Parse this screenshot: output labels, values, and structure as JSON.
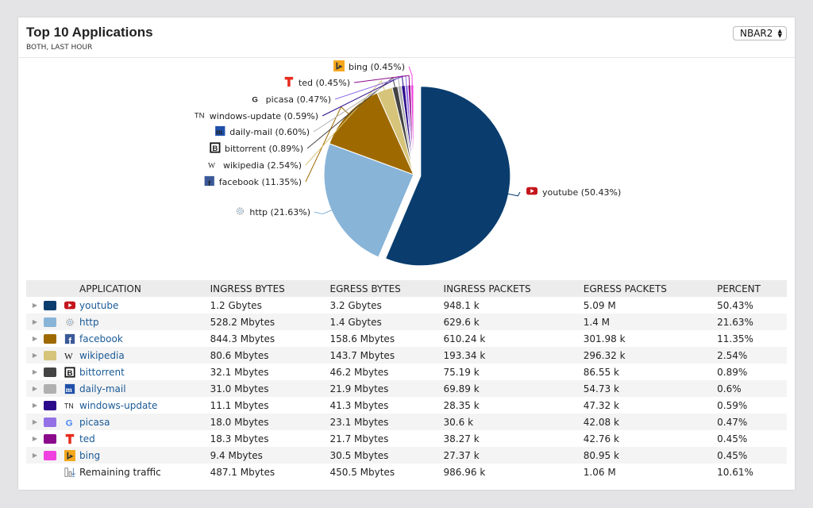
{
  "header": {
    "title": "Top 10 Applications",
    "subtitle": "BOTH, LAST HOUR",
    "select_value": "NBAR2"
  },
  "colors": {
    "accent_link": "#1a5a96"
  },
  "table": {
    "columns": [
      "APPLICATION",
      "INGRESS BYTES",
      "EGRESS BYTES",
      "INGRESS PACKETS",
      "EGRESS PACKETS",
      "PERCENT"
    ],
    "rows": [
      {
        "app": "youtube",
        "icon": "youtube-icon",
        "color": "#0a3d6e",
        "ingress_bytes": "1.2 Gbytes",
        "egress_bytes": "3.2 Gbytes",
        "ingress_packets": "948.1 k",
        "egress_packets": "5.09 M",
        "percent": "50.43%"
      },
      {
        "app": "http",
        "icon": "gear-icon",
        "color": "#88b4d8",
        "ingress_bytes": "528.2 Mbytes",
        "egress_bytes": "1.4 Gbytes",
        "ingress_packets": "629.6 k",
        "egress_packets": "1.4 M",
        "percent": "21.63%"
      },
      {
        "app": "facebook",
        "icon": "facebook-icon",
        "color": "#9e6a00",
        "ingress_bytes": "844.3 Mbytes",
        "egress_bytes": "158.6 Mbytes",
        "ingress_packets": "610.24 k",
        "egress_packets": "301.98 k",
        "percent": "11.35%"
      },
      {
        "app": "wikipedia",
        "icon": "wikipedia-icon",
        "color": "#d6c47a",
        "ingress_bytes": "80.6 Mbytes",
        "egress_bytes": "143.7 Mbytes",
        "ingress_packets": "193.34 k",
        "egress_packets": "296.32 k",
        "percent": "2.54%"
      },
      {
        "app": "bittorrent",
        "icon": "bittorrent-icon",
        "color": "#444444",
        "ingress_bytes": "32.1 Mbytes",
        "egress_bytes": "46.2 Mbytes",
        "ingress_packets": "75.19 k",
        "egress_packets": "86.55 k",
        "percent": "0.89%"
      },
      {
        "app": "daily-mail",
        "icon": "daily-mail-icon",
        "color": "#b0b0b0",
        "ingress_bytes": "31.0 Mbytes",
        "egress_bytes": "21.9 Mbytes",
        "ingress_packets": "69.89 k",
        "egress_packets": "54.73 k",
        "percent": "0.6%"
      },
      {
        "app": "windows-update",
        "icon": "windows-update-icon",
        "color": "#2a0a8a",
        "ingress_bytes": "11.1 Mbytes",
        "egress_bytes": "41.3 Mbytes",
        "ingress_packets": "28.35 k",
        "egress_packets": "47.32 k",
        "percent": "0.59%"
      },
      {
        "app": "picasa",
        "icon": "google-icon",
        "color": "#9370e6",
        "ingress_bytes": "18.0 Mbytes",
        "egress_bytes": "23.1 Mbytes",
        "ingress_packets": "30.6 k",
        "egress_packets": "42.08 k",
        "percent": "0.47%"
      },
      {
        "app": "ted",
        "icon": "ted-icon",
        "color": "#8b0a8b",
        "ingress_bytes": "18.3 Mbytes",
        "egress_bytes": "21.7 Mbytes",
        "ingress_packets": "38.27 k",
        "egress_packets": "42.76 k",
        "percent": "0.45%"
      },
      {
        "app": "bing",
        "icon": "bing-icon",
        "color": "#f040e0",
        "ingress_bytes": "9.4 Mbytes",
        "egress_bytes": "30.5 Mbytes",
        "ingress_packets": "27.37 k",
        "egress_packets": "80.95 k",
        "percent": "0.45%"
      }
    ],
    "remaining": {
      "app": "Remaining traffic",
      "icon": "remaining-traffic-icon",
      "ingress_bytes": "487.1 Mbytes",
      "egress_bytes": "450.5 Mbytes",
      "ingress_packets": "986.96 k",
      "egress_packets": "1.06 M",
      "percent": "10.61%"
    }
  },
  "chart_data": {
    "type": "pie",
    "slices": [
      {
        "label": "youtube (50.43%)",
        "value": 50.43,
        "color": "#0a3d6e",
        "exploded": true
      },
      {
        "label": "http (21.63%)",
        "value": 21.63,
        "color": "#88b4d8"
      },
      {
        "label": "facebook (11.35%)",
        "value": 11.35,
        "color": "#9e6a00"
      },
      {
        "label": "wikipedia (2.54%)",
        "value": 2.54,
        "color": "#d6c47a"
      },
      {
        "label": "bittorrent (0.89%)",
        "value": 0.89,
        "color": "#444444"
      },
      {
        "label": "daily-mail (0.60%)",
        "value": 0.6,
        "color": "#b0b0b0"
      },
      {
        "label": "windows-update (0.59%)",
        "value": 0.59,
        "color": "#2a0a8a"
      },
      {
        "label": "picasa (0.47%)",
        "value": 0.47,
        "color": "#9370e6"
      },
      {
        "label": "ted (0.45%)",
        "value": 0.45,
        "color": "#8b0a8b"
      },
      {
        "label": "bing (0.45%)",
        "value": 0.45,
        "color": "#f040e0"
      }
    ]
  }
}
